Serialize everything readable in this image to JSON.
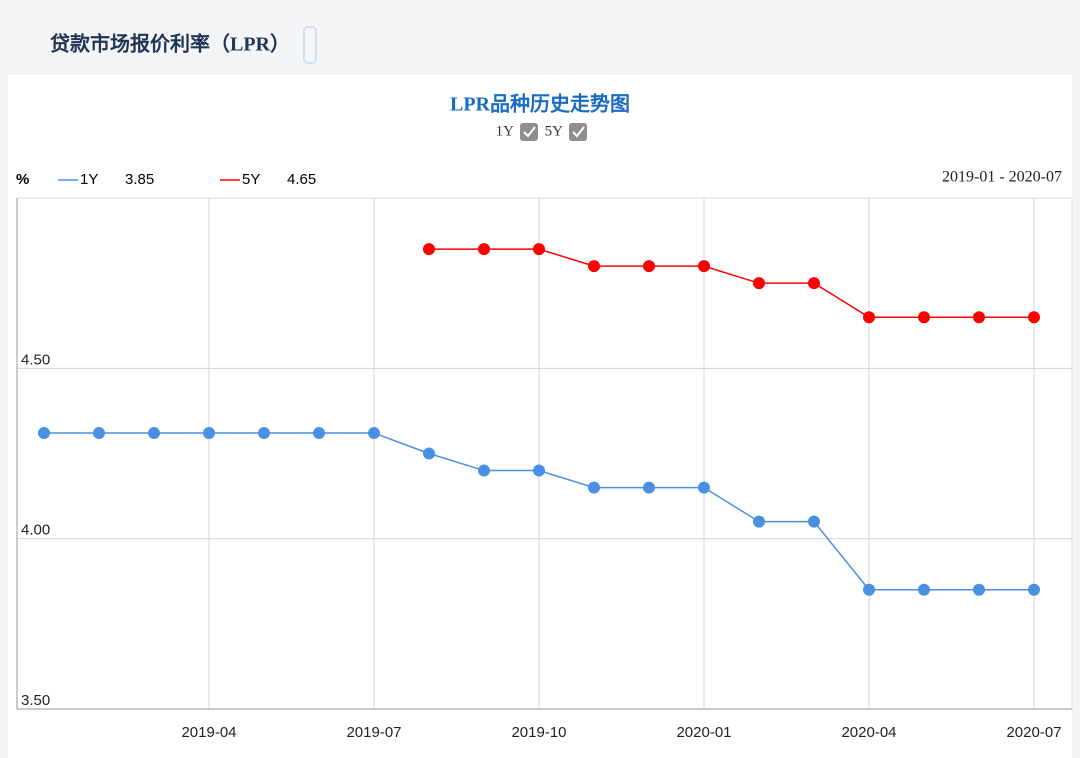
{
  "page_title": "贷款市场报价利率（LPR）",
  "chart_data": {
    "type": "line",
    "title": "LPR品种历史走势图",
    "unit": "%",
    "range": "2019-01 - 2020-07",
    "categories": [
      null,
      null,
      null,
      "2019-04",
      null,
      null,
      "2019-07",
      null,
      null,
      "2019-10",
      null,
      null,
      "2020-01",
      null,
      null,
      "2020-04",
      null,
      null,
      "2020-07"
    ],
    "series": [
      {
        "name": "1Y",
        "color": "#4a90e2",
        "current": 3.85,
        "values": [
          4.31,
          4.31,
          4.31,
          4.31,
          4.31,
          4.31,
          4.31,
          4.25,
          4.2,
          4.2,
          4.15,
          4.15,
          4.15,
          4.05,
          4.05,
          3.85,
          3.85,
          3.85,
          3.85
        ]
      },
      {
        "name": "5Y",
        "color": "#ff0000",
        "current": 4.65,
        "values": [
          null,
          null,
          null,
          null,
          null,
          null,
          null,
          4.85,
          4.85,
          4.85,
          4.8,
          4.8,
          4.8,
          4.75,
          4.75,
          4.65,
          4.65,
          4.65,
          4.65
        ]
      }
    ],
    "ylim": [
      3.5,
      5.0
    ],
    "yticks": [
      {
        "value": 3.5,
        "label": "3.50"
      },
      {
        "value": 4.0,
        "label": "4.00"
      },
      {
        "value": 4.5,
        "label": "4.50"
      }
    ],
    "grid": true
  }
}
